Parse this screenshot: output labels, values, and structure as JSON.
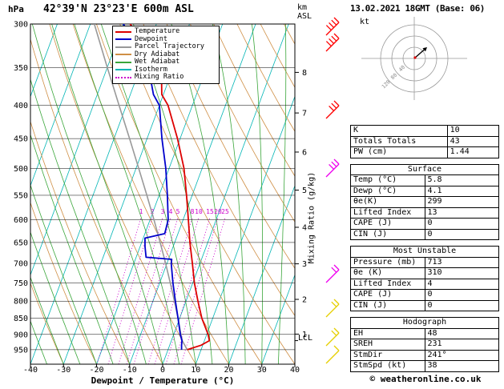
{
  "header": {
    "pressure_unit": "hPa",
    "title": "42°39'N 23°23'E 600m ASL",
    "km": "km",
    "asl": "ASL",
    "date_title": "13.02.2021 18GMT (Base: 06)"
  },
  "legend": {
    "items": [
      {
        "label": "Temperature",
        "color": "#dd0000",
        "dash": "solid"
      },
      {
        "label": "Dewpoint",
        "color": "#0000cc",
        "dash": "solid"
      },
      {
        "label": "Parcel Trajectory",
        "color": "#999999",
        "dash": "solid"
      },
      {
        "label": "Dry Adiabat",
        "color": "#cf8f45",
        "dash": "solid"
      },
      {
        "label": "Wet Adiabat",
        "color": "#3aa63a",
        "dash": "solid"
      },
      {
        "label": "Isotherm",
        "color": "#00b5b5",
        "dash": "solid"
      },
      {
        "label": "Mixing Ratio",
        "color": "#cc00cc",
        "dash": "dotted"
      }
    ]
  },
  "chart_data": {
    "type": "line",
    "title": "Skew-T log-P sounding",
    "x_axis": {
      "label": "Dewpoint / Temperature (°C)",
      "ticks": [
        -40,
        -30,
        -20,
        -10,
        0,
        10,
        20,
        30,
        40
      ],
      "range": [
        -40,
        40
      ]
    },
    "y_axis": {
      "unit": "hPa",
      "scale": "log",
      "top": 300,
      "bottom": 1000,
      "ticks": [
        300,
        350,
        400,
        450,
        500,
        550,
        600,
        650,
        700,
        750,
        800,
        850,
        900,
        950
      ]
    },
    "km_ticks": [
      {
        "km": 1,
        "hpa": 899
      },
      {
        "km": 2,
        "hpa": 795
      },
      {
        "km": 3,
        "hpa": 701
      },
      {
        "km": 4,
        "hpa": 616
      },
      {
        "km": 5,
        "hpa": 540
      },
      {
        "km": 6,
        "hpa": 472
      },
      {
        "km": 7,
        "hpa": 411
      },
      {
        "km": 8,
        "hpa": 356
      }
    ],
    "mixing_ratio_axis_label": "Mixing Ratio (g/kg)",
    "mixing_ratio_labels": [
      {
        "value": "1",
        "x": 176
      },
      {
        "value": "2",
        "x": 190
      },
      {
        "value": "3",
        "x": 203
      },
      {
        "value": "4",
        "x": 213
      },
      {
        "value": "5",
        "x": 222
      },
      {
        "value": "8",
        "x": 240
      },
      {
        "value": "10",
        "x": 248
      },
      {
        "value": "15",
        "x": 262
      },
      {
        "value": "20",
        "x": 272
      },
      {
        "value": "25",
        "x": 281
      }
    ],
    "lcl": {
      "label": "LCL",
      "pressure_hpa": 920
    },
    "styles": {
      "isotherm": "#00b5b5",
      "dry_adiabat": "#cf8f45",
      "wet_adiabat": "#3aa63a",
      "mixing_ratio": "#cc00cc",
      "grid": "#000000"
    },
    "series": [
      {
        "name": "Parcel Trajectory",
        "color": "#999999",
        "width": 1.6,
        "points": [
          [
            950,
            5.8
          ],
          [
            920,
            3.3
          ],
          [
            900,
            2.2
          ],
          [
            850,
            -0.5
          ],
          [
            800,
            -3.5
          ],
          [
            750,
            -6.8
          ],
          [
            700,
            -10.4
          ],
          [
            650,
            -14.4
          ],
          [
            600,
            -18.8
          ],
          [
            550,
            -23.7
          ],
          [
            500,
            -29.2
          ],
          [
            450,
            -35.3
          ],
          [
            400,
            -42.2
          ],
          [
            350,
            -50.0
          ],
          [
            300,
            -58.8
          ]
        ]
      },
      {
        "name": "Dewpoint",
        "color": "#0000cc",
        "width": 1.8,
        "points": [
          [
            950,
            4.1
          ],
          [
            935,
            3.6
          ],
          [
            920,
            3.2
          ],
          [
            900,
            2.0
          ],
          [
            850,
            -0.5
          ],
          [
            800,
            -3.2
          ],
          [
            750,
            -6.0
          ],
          [
            700,
            -8.7
          ],
          [
            690,
            -9.0
          ],
          [
            685,
            -17.0
          ],
          [
            660,
            -18.5
          ],
          [
            640,
            -19.5
          ],
          [
            630,
            -14.0
          ],
          [
            600,
            -14.5
          ],
          [
            550,
            -17.5
          ],
          [
            500,
            -21.0
          ],
          [
            450,
            -25.5
          ],
          [
            400,
            -30.0
          ],
          [
            385,
            -33.0
          ],
          [
            350,
            -37.5
          ],
          [
            300,
            -50.0
          ]
        ]
      },
      {
        "name": "Temperature",
        "color": "#dd0000",
        "width": 1.8,
        "points": [
          [
            950,
            5.8
          ],
          [
            935,
            9.5
          ],
          [
            920,
            11.5
          ],
          [
            900,
            10.4
          ],
          [
            850,
            6.7
          ],
          [
            800,
            3.6
          ],
          [
            750,
            0.5
          ],
          [
            700,
            -2.3
          ],
          [
            650,
            -5.4
          ],
          [
            600,
            -8.4
          ],
          [
            550,
            -11.7
          ],
          [
            500,
            -15.5
          ],
          [
            450,
            -20.8
          ],
          [
            400,
            -27.4
          ],
          [
            385,
            -30.5
          ],
          [
            370,
            -31.8
          ],
          [
            350,
            -35.0
          ],
          [
            330,
            -38.5
          ],
          [
            300,
            -48.0
          ]
        ]
      }
    ],
    "wind_barbs": [
      {
        "y": 36,
        "color": "#ff0000",
        "ticks": 4
      },
      {
        "y": 56,
        "color": "#ff0000",
        "ticks": 4
      },
      {
        "y": 140,
        "color": "#ff0000",
        "ticks": 3
      },
      {
        "y": 213,
        "color": "#ee00ee",
        "ticks": 3
      },
      {
        "y": 345,
        "color": "#ee00ee",
        "ticks": 2
      },
      {
        "y": 388,
        "color": "#e6cf00",
        "ticks": 2
      },
      {
        "y": 424,
        "color": "#e6cf00",
        "ticks": 2
      },
      {
        "y": 446,
        "color": "#e6cf00",
        "ticks": 1
      }
    ]
  },
  "hodograph": {
    "unit_label": "kt",
    "rings_kt": [
      40,
      80,
      120
    ],
    "ring_labels": [
      "40",
      "80",
      "120"
    ]
  },
  "panel": {
    "sections": [
      {
        "header": null,
        "rows": [
          [
            "K",
            "10"
          ],
          [
            "Totals Totals",
            "43"
          ],
          [
            "PW (cm)",
            "1.44"
          ]
        ]
      },
      {
        "header": "Surface",
        "rows": [
          [
            "Temp (°C)",
            "5.8"
          ],
          [
            "Dewp (°C)",
            "4.1"
          ],
          [
            "θe(K)",
            "299"
          ],
          [
            "Lifted Index",
            "13"
          ],
          [
            "CAPE (J)",
            "0"
          ],
          [
            "CIN (J)",
            "0"
          ]
        ]
      },
      {
        "header": "Most Unstable",
        "rows": [
          [
            "Pressure (mb)",
            "713"
          ],
          [
            "θe (K)",
            "310"
          ],
          [
            "Lifted Index",
            "4"
          ],
          [
            "CAPE (J)",
            "0"
          ],
          [
            "CIN (J)",
            "0"
          ]
        ]
      },
      {
        "header": "Hodograph",
        "rows": [
          [
            "EH",
            "48"
          ],
          [
            "SREH",
            "231"
          ],
          [
            "StmDir",
            "241°"
          ],
          [
            "StmSpd (kt)",
            "38"
          ]
        ]
      }
    ]
  },
  "footer": {
    "copyright": "© weatheronline.co.uk"
  }
}
